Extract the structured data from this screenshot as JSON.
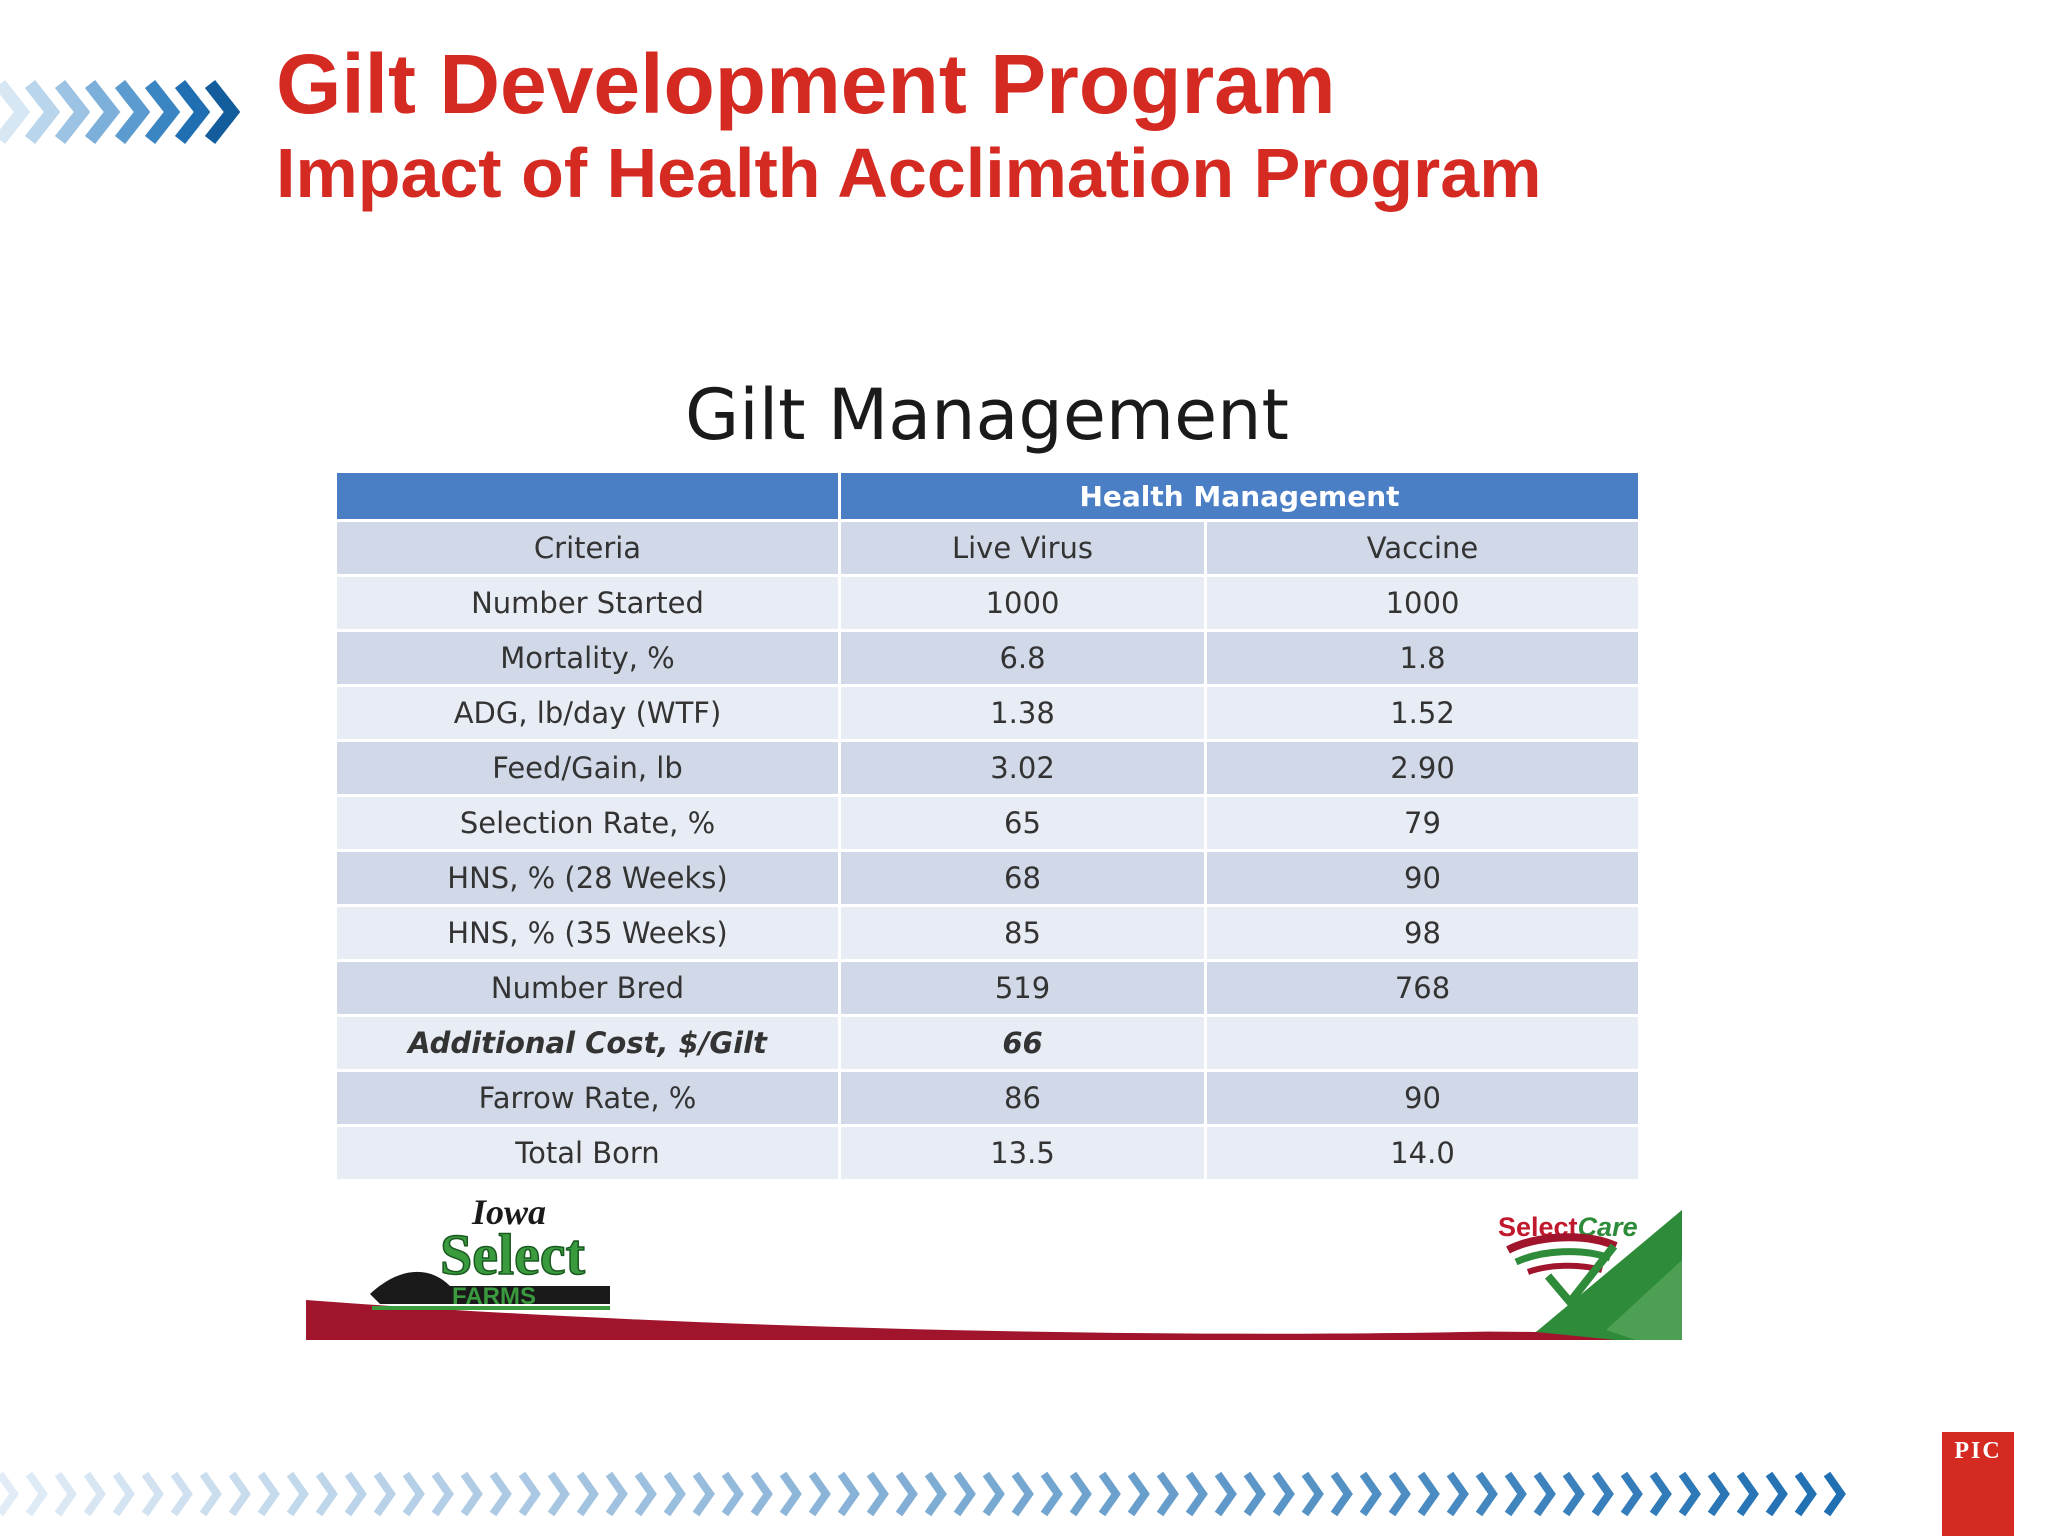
{
  "header": {
    "title": "Gilt Development Program",
    "subtitle": "Impact of Health Acclimation Program"
  },
  "slide": {
    "title": "Gilt Management",
    "table": {
      "group_header": "Health Management",
      "columns": [
        "Criteria",
        "Live Virus",
        "Vaccine"
      ],
      "rows": [
        {
          "criteria": "Number Started",
          "live_virus": "1000",
          "vaccine": "1000"
        },
        {
          "criteria": "Mortality, %",
          "live_virus": "6.8",
          "vaccine": "1.8"
        },
        {
          "criteria": "ADG, lb/day (WTF)",
          "live_virus": "1.38",
          "vaccine": "1.52"
        },
        {
          "criteria": "Feed/Gain, lb",
          "live_virus": "3.02",
          "vaccine": "2.90"
        },
        {
          "criteria": "Selection Rate, %",
          "live_virus": "65",
          "vaccine": "79"
        },
        {
          "criteria": "HNS, % (28 Weeks)",
          "live_virus": "68",
          "vaccine": "90"
        },
        {
          "criteria": "HNS, % (35 Weeks)",
          "live_virus": "85",
          "vaccine": "98"
        },
        {
          "criteria": "Number Bred",
          "live_virus": "519",
          "vaccine": "768"
        },
        {
          "criteria": "Additional Cost, $/Gilt",
          "live_virus": "66",
          "vaccine": ""
        },
        {
          "criteria": "Farrow Rate, %",
          "live_virus": "86",
          "vaccine": "90"
        },
        {
          "criteria": "Total Born",
          "live_virus": "13.5",
          "vaccine": "14.0"
        }
      ]
    },
    "logos": {
      "left": {
        "line1": "Iowa",
        "line2": "Select",
        "line3": "FARMS"
      },
      "right": {
        "select": "Select",
        "care": "Care"
      }
    }
  },
  "footer": {
    "brand": "PIC"
  },
  "colors": {
    "title_red": "#d42a22",
    "table_header_blue": "#4a7fc6",
    "row_dark": "#d1d9e8",
    "row_light": "#e8ecf4",
    "chevron_blue": "#1f6fb2",
    "band_maroon": "#a0142c",
    "band_green": "#2e8b3a"
  }
}
